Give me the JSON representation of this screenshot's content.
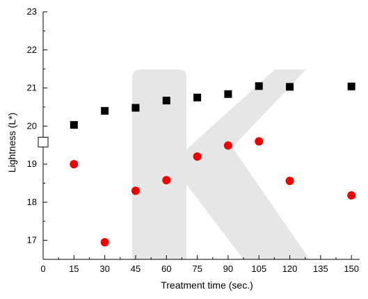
{
  "chart_data": {
    "type": "scatter",
    "title": "",
    "xlabel": "Treatment time (sec.)",
    "ylabel": "Lightness (L*)",
    "xlim": [
      0,
      154
    ],
    "ylim": [
      16.5,
      23
    ],
    "x_ticks": [
      0,
      15,
      30,
      45,
      60,
      75,
      90,
      105,
      120,
      135,
      150
    ],
    "y_ticks": [
      17,
      18,
      19,
      20,
      21,
      22,
      23
    ],
    "grid": false,
    "legend": "none",
    "series": [
      {
        "marker": "square",
        "color": "#000000",
        "points": [
          {
            "x": 15,
            "y": 20.03
          },
          {
            "x": 30,
            "y": 20.4
          },
          {
            "x": 45,
            "y": 20.48
          },
          {
            "x": 60,
            "y": 20.67
          },
          {
            "x": 75,
            "y": 20.75
          },
          {
            "x": 90,
            "y": 20.84
          },
          {
            "x": 105,
            "y": 21.05
          },
          {
            "x": 120,
            "y": 21.03
          },
          {
            "x": 150,
            "y": 21.04
          }
        ]
      },
      {
        "marker": "circle",
        "color": "#ee0000",
        "points": [
          {
            "x": 15,
            "y": 19.0
          },
          {
            "x": 30,
            "y": 16.95
          },
          {
            "x": 45,
            "y": 18.3
          },
          {
            "x": 60,
            "y": 18.58
          },
          {
            "x": 75,
            "y": 19.2
          },
          {
            "x": 90,
            "y": 19.49
          },
          {
            "x": 105,
            "y": 19.6
          },
          {
            "x": 120,
            "y": 18.56
          },
          {
            "x": 150,
            "y": 18.18
          }
        ]
      },
      {
        "marker": "open-square",
        "color": "#000000",
        "points": [
          {
            "x": 0,
            "y": 19.58
          }
        ]
      }
    ]
  },
  "watermark": {
    "glyph": "K",
    "color": "#e6e6e6"
  }
}
